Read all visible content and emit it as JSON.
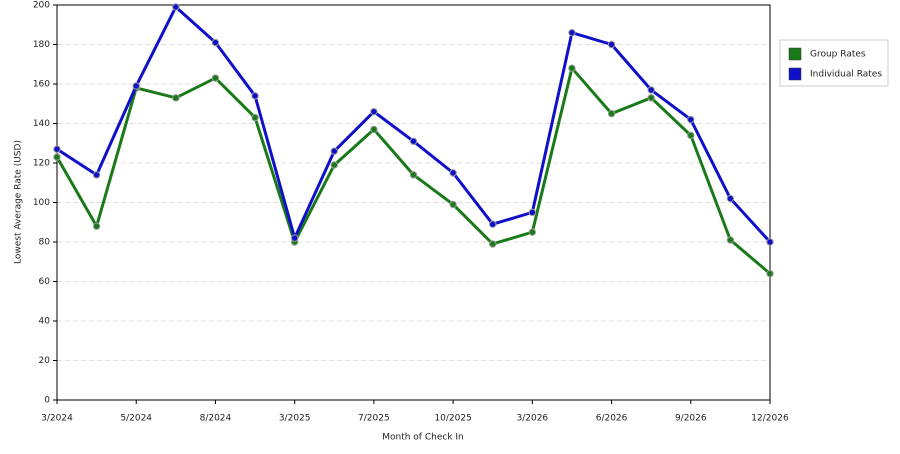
{
  "chart_data": {
    "type": "line",
    "x_label": "Month of Check In",
    "y_label": "Lowest Average Rate (USD)",
    "categories": [
      "3/2024",
      null,
      "5/2024",
      null,
      "8/2024",
      null,
      "3/2025",
      null,
      "7/2025",
      null,
      "10/2025",
      null,
      "3/2026",
      null,
      "6/2026",
      null,
      "9/2026",
      null,
      "12/2026"
    ],
    "series": [
      {
        "name": "Group Rates",
        "color": "#1a7a1a",
        "values": [
          123,
          88,
          158,
          153,
          163,
          143,
          80,
          119,
          137,
          114,
          99,
          79,
          85,
          168,
          145,
          153,
          134,
          81,
          64
        ]
      },
      {
        "name": "Individual Rates",
        "color": "#1010c8",
        "values": [
          127,
          114,
          159,
          199,
          181,
          154,
          82,
          126,
          146,
          131,
          115,
          89,
          95,
          186,
          180,
          157,
          142,
          102,
          80
        ]
      }
    ],
    "ylim": [
      0,
      200
    ],
    "yticks": [
      0,
      20,
      40,
      60,
      80,
      100,
      120,
      140,
      160,
      180,
      200
    ],
    "grid": true,
    "legend": "right"
  }
}
